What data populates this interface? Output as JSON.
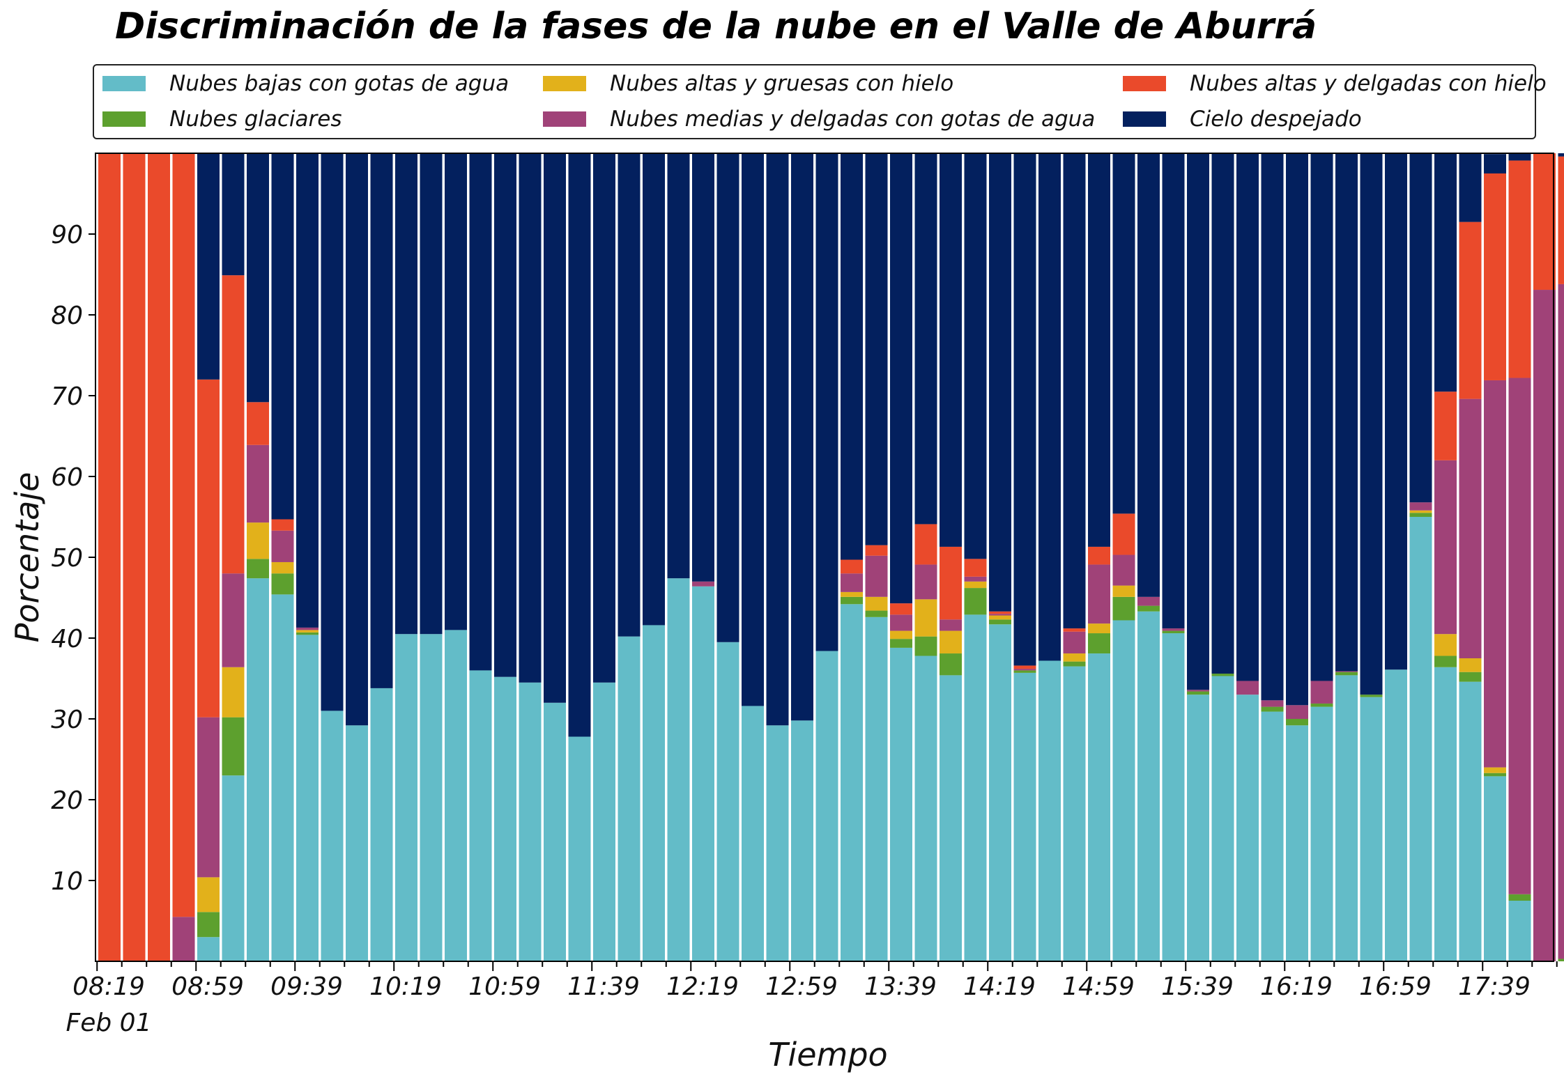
{
  "chart_data": {
    "type": "bar",
    "stacked": true,
    "title": "Discriminación de la fases de la nube en el Valle de Aburrá",
    "xlabel": "Tiempo",
    "ylabel": "Porcentaje",
    "ylim": [
      0,
      100
    ],
    "yticks": [
      10,
      20,
      30,
      40,
      50,
      60,
      70,
      80,
      90
    ],
    "xticks": [
      "08:19",
      "08:59",
      "09:39",
      "10:19",
      "10:59",
      "11:39",
      "12:19",
      "12:59",
      "13:39",
      "14:19",
      "14:59",
      "15:39",
      "16:19",
      "16:59",
      "17:39"
    ],
    "xtick_sublabel": "Feb 01",
    "grid": false,
    "legend_position": "top",
    "categories": [
      "08:19",
      "08:29",
      "08:39",
      "08:49",
      "08:59",
      "09:09",
      "09:19",
      "09:29",
      "09:39",
      "09:49",
      "09:59",
      "10:09",
      "10:19",
      "10:29",
      "10:39",
      "10:49",
      "10:59",
      "11:09",
      "11:19",
      "11:29",
      "11:39",
      "11:49",
      "11:59",
      "12:09",
      "12:19",
      "12:29",
      "12:39",
      "12:49",
      "12:59",
      "13:09",
      "13:19",
      "13:29",
      "13:39",
      "13:49",
      "13:59",
      "14:09",
      "14:19",
      "14:29",
      "14:39",
      "14:49",
      "14:59",
      "15:09",
      "15:19",
      "15:29",
      "15:39",
      "15:49",
      "15:59",
      "16:09",
      "16:19",
      "16:29",
      "16:39",
      "16:49",
      "16:59",
      "17:09",
      "17:19",
      "17:29",
      "17:39",
      "17:49",
      "17:59",
      "18:09"
    ],
    "series": [
      {
        "name": "Nubes bajas con gotas de agua",
        "color": "#63bcc8",
        "values": [
          0,
          0,
          0,
          0,
          3,
          23,
          47.4,
          45.4,
          40.4,
          31,
          29.2,
          33.8,
          40.5,
          40.5,
          41,
          36,
          35.2,
          34.5,
          32,
          27.8,
          34.5,
          40.2,
          41.6,
          47.4,
          46.4,
          39.5,
          31.6,
          29.2,
          29.8,
          38.4,
          44.2,
          42.6,
          38.8,
          37.8,
          35.4,
          42.9,
          41.7,
          35.7,
          37.2,
          36.5,
          38.1,
          42.2,
          43.3,
          40.6,
          33,
          35.3,
          33,
          30.9,
          29.2,
          31.5,
          35.4,
          32.7,
          36.1,
          55,
          36.4,
          34.6,
          22.9,
          7.5,
          0,
          0
        ]
      },
      {
        "name": "Nubes glaciares",
        "color": "#5da02e",
        "values": [
          0,
          0,
          0,
          0,
          3.1,
          7.2,
          2.4,
          2.6,
          0.3,
          0,
          0,
          0,
          0,
          0,
          0,
          0,
          0,
          0,
          0,
          0,
          0,
          0,
          0,
          0,
          0,
          0,
          0,
          0,
          0,
          0,
          0.9,
          0.8,
          1.1,
          2.4,
          2.7,
          3.3,
          0.6,
          0.3,
          0,
          0.6,
          2.5,
          2.9,
          0.7,
          0.3,
          0.4,
          0.3,
          0,
          0.6,
          0.8,
          0.4,
          0.4,
          0.3,
          0,
          0.5,
          1.4,
          1.2,
          0.4,
          0.8,
          0,
          0.3
        ]
      },
      {
        "name": "Nubes altas y gruesas con hielo",
        "color": "#e2b11b",
        "values": [
          0,
          0,
          0,
          0,
          4.3,
          6.2,
          4.5,
          1.4,
          0.3,
          0,
          0,
          0,
          0,
          0,
          0,
          0,
          0,
          0,
          0,
          0,
          0,
          0,
          0,
          0,
          0,
          0,
          0,
          0,
          0,
          0,
          0.6,
          1.7,
          1,
          4.6,
          2.8,
          0.8,
          0.5,
          0,
          0,
          1,
          1.2,
          1.4,
          0,
          0,
          0,
          0,
          0,
          0,
          0,
          0,
          0,
          0,
          0,
          0.3,
          2.7,
          1.7,
          0.7,
          0,
          0,
          0
        ]
      },
      {
        "name": "Nubes medias y delgadas con gotas de agua",
        "color": "#a04278",
        "values": [
          0,
          0,
          0,
          5.5,
          19.8,
          11.6,
          9.6,
          3.9,
          0.3,
          0,
          0,
          0,
          0,
          0,
          0,
          0,
          0,
          0,
          0,
          0,
          0,
          0,
          0,
          0,
          0.6,
          0,
          0,
          0,
          0,
          0,
          2.3,
          5.1,
          2,
          4.3,
          1.4,
          0.6,
          0.2,
          0.2,
          0,
          2.7,
          7.3,
          3.8,
          1.1,
          0.3,
          0.2,
          0,
          1.7,
          0.8,
          1.7,
          2.8,
          0.1,
          0,
          0,
          1,
          21.5,
          32.1,
          47.9,
          63.9,
          83.1,
          83.5
        ]
      },
      {
        "name": "Nubes altas y delgadas con hielo",
        "color": "#ea4a2b",
        "values": [
          100,
          100,
          100,
          94.5,
          41.8,
          36.9,
          5.3,
          1.4,
          0,
          0,
          0,
          0,
          0,
          0,
          0,
          0,
          0,
          0,
          0,
          0,
          0,
          0,
          0,
          0,
          0,
          0,
          0,
          0,
          0,
          0,
          1.7,
          1.3,
          1.4,
          5,
          9,
          2.2,
          0.3,
          0.4,
          0,
          0.4,
          2.2,
          5.1,
          0,
          0,
          0,
          0,
          0,
          0,
          0,
          0,
          0,
          0,
          0,
          0,
          8.5,
          21.9,
          25.6,
          26.9,
          16.9,
          15.8
        ]
      },
      {
        "name": "Cielo despejado",
        "color": "#03205e",
        "values": [
          0,
          0,
          0,
          0,
          28,
          15.1,
          30.8,
          45.3,
          58.7,
          69,
          70.8,
          66.2,
          59.5,
          59.5,
          59,
          64,
          64.8,
          65.5,
          68,
          72.2,
          65.5,
          59.8,
          58.4,
          52.6,
          53,
          60.5,
          68.4,
          70.8,
          70.2,
          61.6,
          50.3,
          48.5,
          55.7,
          45.9,
          48.7,
          50.2,
          56.7,
          63.4,
          62.8,
          58.8,
          48.7,
          44.6,
          54.9,
          58.8,
          66.4,
          64.4,
          65.3,
          67.7,
          68.3,
          65.3,
          64.1,
          67,
          63.9,
          43.2,
          29.5,
          8.5,
          2.4,
          0.9,
          0,
          0.4
        ]
      }
    ]
  }
}
